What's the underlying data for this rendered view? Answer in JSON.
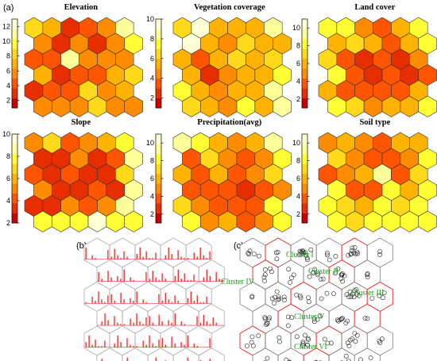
{
  "panel_labels": [
    "(a)",
    "(b)",
    "(c)"
  ],
  "colors": {
    "scale": [
      "#cc0000",
      "#e62e00",
      "#ff5500",
      "#ff8c00",
      "#ffb300",
      "#ffd91a",
      "#ffff33",
      "#ffff99",
      "#ffffd6"
    ],
    "outline": "#333333",
    "panel_b_grid": "#9a9a9a",
    "panel_b_spikes": "#e60000",
    "cluster_border": "#e62020",
    "cluster_text": "#1aa31a"
  },
  "maps": [
    {
      "title": "Elevation",
      "ticks": [
        "2",
        "4",
        "6",
        "8",
        "10",
        "12"
      ],
      "vmin": 1,
      "vmax": 13,
      "values": [
        [
          9,
          7,
          3,
          4,
          6,
          12
        ],
        [
          6,
          3,
          5,
          3,
          5,
          10
        ],
        [
          4,
          4,
          11,
          5,
          6,
          6
        ],
        [
          7,
          3,
          4,
          4,
          7,
          8
        ],
        [
          3,
          4,
          4,
          9,
          5,
          7
        ],
        [
          6,
          5,
          6,
          8,
          5,
          5
        ]
      ]
    },
    {
      "title": "Vegetation coverage",
      "ticks": [
        "2",
        "4",
        "6",
        "8",
        "10"
      ],
      "vmin": 1,
      "vmax": 10,
      "values": [
        [
          7,
          10,
          5,
          6,
          5,
          9
        ],
        [
          10,
          5,
          4,
          7,
          5,
          6
        ],
        [
          6,
          3,
          5,
          7,
          5,
          7
        ],
        [
          6,
          2,
          4,
          5,
          6,
          8
        ],
        [
          8,
          6,
          4,
          6,
          5,
          9
        ],
        [
          7,
          5,
          4,
          8,
          6,
          9
        ]
      ]
    },
    {
      "title": "Land cover",
      "ticks": [
        "2",
        "4",
        "6",
        "8",
        "10"
      ],
      "vmin": 1,
      "vmax": 11,
      "values": [
        [
          8,
          9,
          5,
          4,
          6,
          9
        ],
        [
          6,
          7,
          6,
          4,
          6,
          8
        ],
        [
          7,
          3,
          2,
          3,
          2,
          5
        ],
        [
          9,
          3,
          2,
          3,
          2,
          4
        ],
        [
          6,
          4,
          3,
          4,
          4,
          6
        ],
        [
          9,
          7,
          5,
          6,
          6,
          9
        ]
      ]
    },
    {
      "title": "Slope",
      "ticks": [
        "2",
        "4",
        "6",
        "8",
        "10"
      ],
      "vmin": 2,
      "vmax": 10,
      "values": [
        [
          5,
          7,
          4,
          5,
          6,
          8
        ],
        [
          3,
          3,
          5,
          3,
          4,
          9
        ],
        [
          4,
          3,
          4,
          3,
          3,
          7
        ],
        [
          5,
          3,
          3,
          4,
          3,
          9
        ],
        [
          3,
          3,
          5,
          4,
          5,
          9
        ],
        [
          8,
          8,
          8,
          10,
          8,
          8
        ]
      ]
    },
    {
      "title": "Precipitation(avg)",
      "ticks": [
        "2",
        "4",
        "6",
        "8",
        "10"
      ],
      "vmin": 1,
      "vmax": 11,
      "values": [
        [
          10,
          9,
          6,
          5,
          6,
          10
        ],
        [
          4,
          7,
          5,
          4,
          5,
          9
        ],
        [
          6,
          3,
          6,
          3,
          5,
          7
        ],
        [
          4,
          3,
          4,
          2,
          4,
          5
        ],
        [
          7,
          5,
          4,
          3,
          4,
          8
        ],
        [
          9,
          5,
          6,
          4,
          5,
          9
        ]
      ]
    },
    {
      "title": "Soil type",
      "ticks": [
        "2",
        "4",
        "6",
        "8",
        "10"
      ],
      "vmin": 1,
      "vmax": 11,
      "values": [
        [
          5,
          6,
          5,
          4,
          6,
          6
        ],
        [
          7,
          5,
          4,
          3,
          5,
          8
        ],
        [
          3,
          5,
          6,
          10,
          4,
          7
        ],
        [
          8,
          4,
          3,
          8,
          6,
          8
        ],
        [
          9,
          7,
          6,
          8,
          7,
          9
        ],
        [
          9,
          7,
          8,
          9,
          9,
          9
        ]
      ]
    }
  ],
  "panel_b": {
    "spike_sets": [
      [
        0.9,
        0.0,
        0.3,
        0.1,
        0.0,
        0.0,
        0.0,
        0.7
      ],
      [
        0.2,
        0.8,
        0.3,
        0.1,
        0.6,
        0.2,
        0.0,
        0.0
      ],
      [
        0.4,
        0.9,
        0.2,
        0.6,
        0.1,
        0.1,
        0.5,
        0.0
      ],
      [
        0.0,
        0.3,
        0.9,
        0.4,
        0.0,
        0.7,
        0.2,
        0.1
      ],
      [
        0.1,
        0.0,
        0.5,
        0.2,
        0.9,
        0.3,
        0.1,
        0.6
      ],
      [
        0.7,
        0.2,
        0.0,
        0.8,
        0.3,
        0.0,
        0.4,
        0.2
      ]
    ]
  },
  "panel_c": {
    "clusters": [
      {
        "label": "Cluster I"
      },
      {
        "label": "Cluster II"
      },
      {
        "label": "Cluster III"
      },
      {
        "label": "Cluster IV"
      },
      {
        "label": "Cluster V"
      },
      {
        "label": "Cluster VI"
      }
    ],
    "circle_counts": [
      [
        5,
        3,
        12,
        4,
        10,
        2
      ],
      [
        6,
        4,
        8,
        9,
        3,
        1
      ],
      [
        2,
        9,
        5,
        3,
        10,
        4
      ],
      [
        7,
        3,
        4,
        8,
        2,
        5
      ],
      [
        5,
        2,
        9,
        3,
        7,
        3
      ],
      [
        4,
        6,
        3,
        5,
        2,
        0
      ]
    ]
  }
}
